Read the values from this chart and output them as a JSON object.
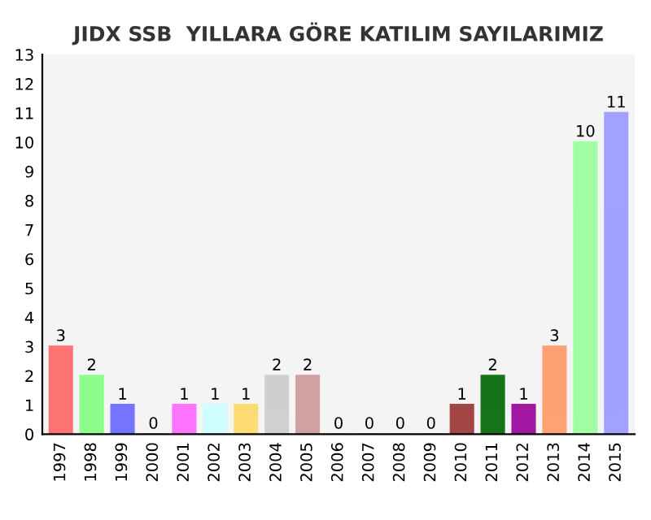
{
  "chart_data": {
    "type": "bar",
    "title": "JIDX SSB  YILLARA GÖRE KATILIM SAYILARIMIZ",
    "categories": [
      "1997",
      "1998",
      "1999",
      "2000",
      "2001",
      "2002",
      "2003",
      "2004",
      "2005",
      "2006",
      "2007",
      "2008",
      "2009",
      "2010",
      "2011",
      "2012",
      "2013",
      "2014",
      "2015"
    ],
    "values": [
      3,
      2,
      1,
      0,
      1,
      1,
      1,
      2,
      2,
      0,
      0,
      0,
      0,
      1,
      2,
      1,
      3,
      10,
      11
    ],
    "colors": [
      "#ff6666",
      "#80ff80",
      "#6666ff",
      "#cccccc",
      "#ff66ff",
      "#ccffff",
      "#ffd966",
      "#cccccc",
      "#cc9999",
      "#cccccc",
      "#cccccc",
      "#cccccc",
      "#cccccc",
      "#993333",
      "#006600",
      "#990099",
      "#ff9966",
      "#99ff99",
      "#9999ff"
    ],
    "ylim": [
      0,
      13
    ],
    "yticks": [
      0,
      1,
      2,
      3,
      4,
      5,
      6,
      7,
      8,
      9,
      10,
      11,
      12,
      13
    ],
    "grid": false,
    "legend": false,
    "data_labels": true
  }
}
